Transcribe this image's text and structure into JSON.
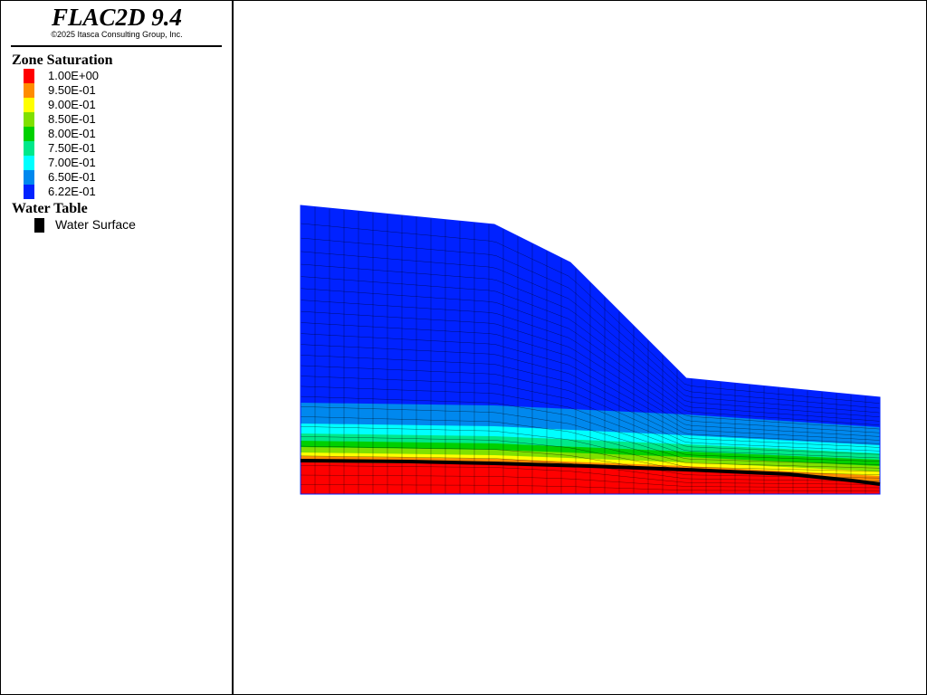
{
  "app": {
    "title": "FLAC2D 9.4",
    "copyright": "©2025 Itasca Consulting Group, Inc."
  },
  "legend": {
    "zone_saturation": {
      "heading": "Zone Saturation",
      "entries": [
        {
          "label": "1.00E+00",
          "color": "#ff0000"
        },
        {
          "label": "9.50E-01",
          "color": "#ff8c00"
        },
        {
          "label": "9.00E-01",
          "color": "#ffff00"
        },
        {
          "label": "8.50E-01",
          "color": "#80e000"
        },
        {
          "label": "8.00E-01",
          "color": "#00d000"
        },
        {
          "label": "7.50E-01",
          "color": "#00e88a"
        },
        {
          "label": "7.00E-01",
          "color": "#00ffff"
        },
        {
          "label": "6.50E-01",
          "color": "#0088ee"
        },
        {
          "label": "6.22E-01",
          "color": "#0022ff"
        }
      ]
    },
    "water_table": {
      "heading": "Water Table",
      "item_label": "Water Surface",
      "item_color": "#000000"
    }
  }
}
